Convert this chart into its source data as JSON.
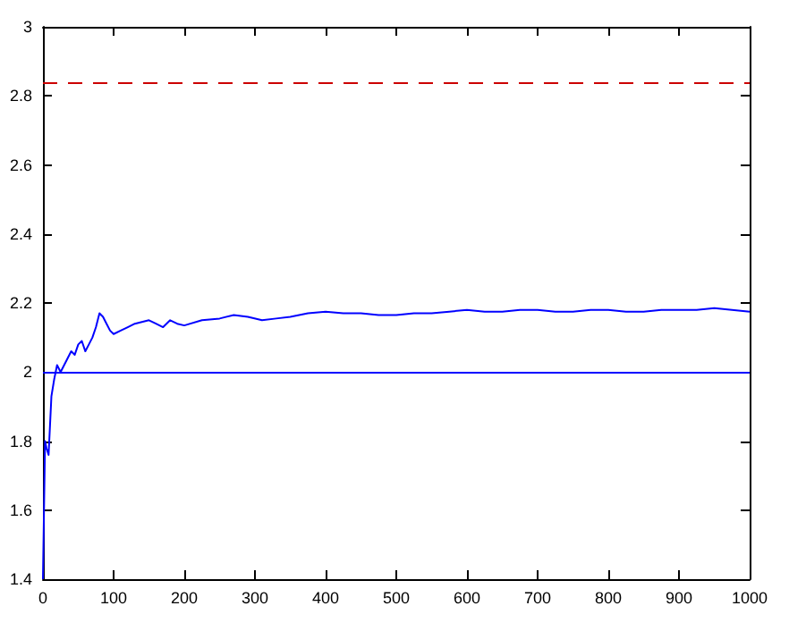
{
  "chart_data": {
    "type": "line",
    "x": [
      0,
      3,
      5,
      8,
      12,
      16,
      20,
      25,
      30,
      35,
      40,
      45,
      50,
      55,
      60,
      65,
      70,
      75,
      80,
      85,
      90,
      95,
      100,
      110,
      120,
      130,
      140,
      150,
      160,
      170,
      180,
      190,
      200,
      225,
      250,
      270,
      290,
      310,
      330,
      350,
      375,
      400,
      425,
      450,
      475,
      500,
      525,
      550,
      575,
      600,
      625,
      650,
      675,
      700,
      725,
      750,
      775,
      800,
      825,
      850,
      875,
      900,
      925,
      950,
      975,
      1000
    ],
    "series": [
      {
        "color": "#0000ff",
        "values": [
          1.4,
          1.8,
          1.78,
          1.76,
          1.93,
          1.98,
          2.02,
          2.0,
          2.02,
          2.04,
          2.06,
          2.05,
          2.08,
          2.09,
          2.06,
          2.08,
          2.1,
          2.13,
          2.17,
          2.16,
          2.14,
          2.12,
          2.11,
          2.12,
          2.13,
          2.14,
          2.145,
          2.15,
          2.14,
          2.13,
          2.15,
          2.14,
          2.135,
          2.15,
          2.155,
          2.165,
          2.16,
          2.15,
          2.155,
          2.16,
          2.17,
          2.175,
          2.17,
          2.17,
          2.165,
          2.165,
          2.17,
          2.17,
          2.175,
          2.18,
          2.175,
          2.175,
          2.18,
          2.18,
          2.175,
          2.175,
          2.18,
          2.18,
          2.175,
          2.175,
          2.18,
          2.18,
          2.18,
          2.185,
          2.18,
          2.175
        ]
      }
    ],
    "xlim": [
      0,
      1000
    ],
    "xticks": [
      0,
      100,
      200,
      300,
      400,
      500,
      600,
      700,
      800,
      900,
      1000
    ],
    "ylim": [
      1.4,
      3
    ],
    "yticks": [
      1.4,
      1.6,
      1.8,
      2,
      2.2,
      2.4,
      2.6,
      2.8,
      3
    ],
    "ref_lines": [
      {
        "axis": "y",
        "value": 2.84,
        "color": "#cc0000",
        "line_style": "dashed"
      },
      {
        "axis": "y",
        "value": 2.0,
        "color": "#0000ff",
        "line_style": "solid"
      }
    ],
    "grid": false,
    "marker": "none"
  }
}
